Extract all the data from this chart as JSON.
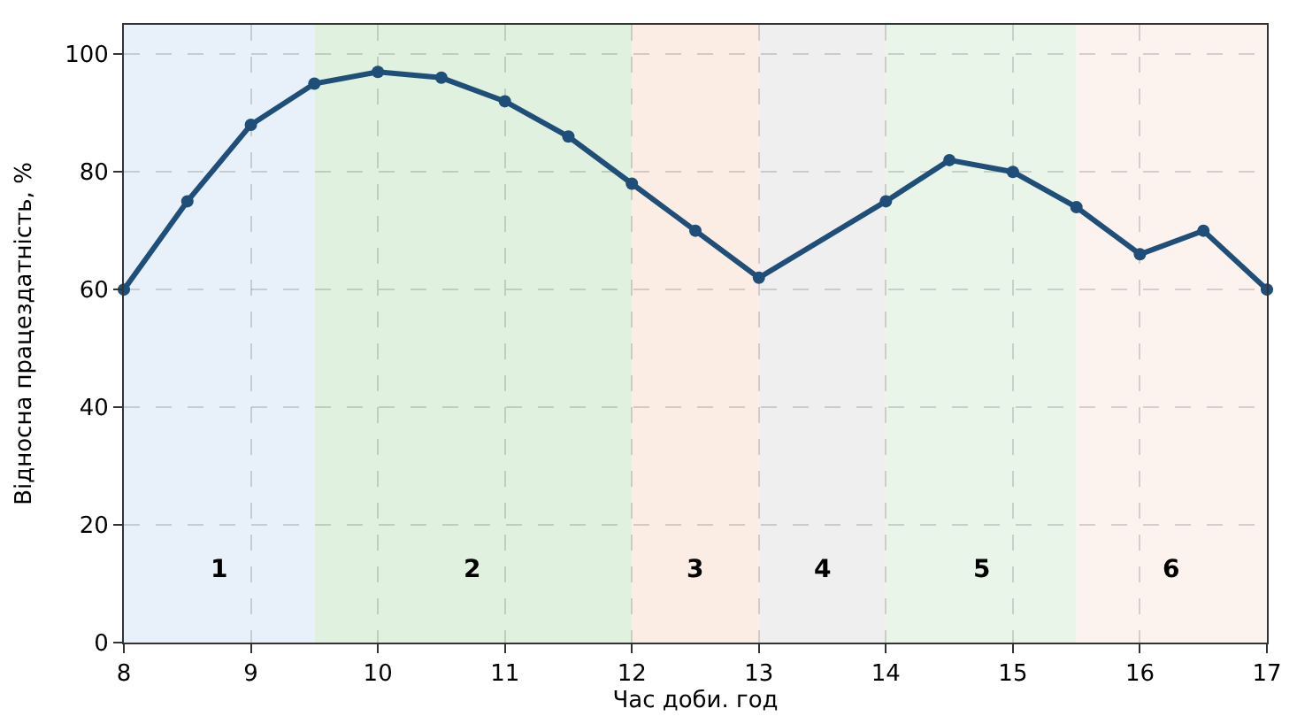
{
  "chart_data": {
    "type": "line",
    "xlabel": "Час доби. год",
    "ylabel": "Відносна працездатність, %",
    "x": [
      8,
      8.5,
      9,
      9.5,
      10,
      10.5,
      11,
      11.5,
      12,
      12.5,
      13,
      14,
      14.5,
      15,
      15.5,
      16,
      16.5,
      17
    ],
    "series": [
      {
        "color": "#1f4e79",
        "values": [
          60,
          75,
          88,
          95,
          97,
          96,
          92,
          86,
          78,
          70,
          62,
          75,
          82,
          80,
          74,
          66,
          70,
          60
        ]
      }
    ],
    "xlim": [
      8,
      17
    ],
    "xticks": [
      8,
      9,
      10,
      11,
      12,
      13,
      14,
      15,
      16,
      17
    ],
    "ylim": [
      0,
      105
    ],
    "yticks": [
      0,
      20,
      40,
      60,
      80,
      100
    ],
    "grid": true,
    "marker": "circle",
    "line_style": "solid",
    "bands": [
      {
        "axis": "x",
        "from": 8,
        "to": 9.5,
        "label": "1",
        "color": "#e8f0fa"
      },
      {
        "axis": "x",
        "from": 9.5,
        "to": 12,
        "label": "2",
        "color": "#e0f2df"
      },
      {
        "axis": "x",
        "from": 12,
        "to": 13,
        "label": "3",
        "color": "#fcede4"
      },
      {
        "axis": "x",
        "from": 13,
        "to": 14,
        "label": "4",
        "color": "#efefef"
      },
      {
        "axis": "x",
        "from": 14,
        "to": 15.5,
        "label": "5",
        "color": "#eaf5ea"
      },
      {
        "axis": "x",
        "from": 15.5,
        "to": 17,
        "label": "6",
        "color": "#fcf3ee"
      }
    ]
  }
}
